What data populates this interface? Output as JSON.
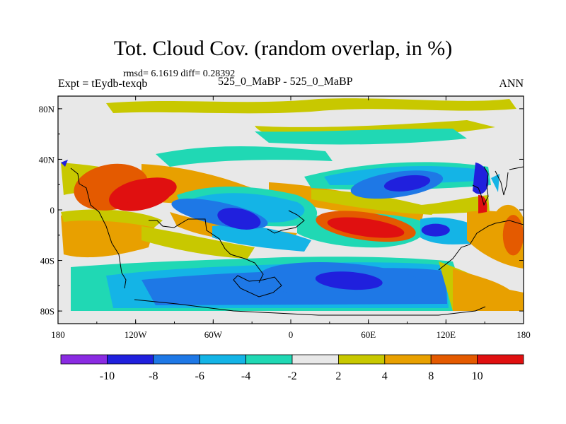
{
  "figure": {
    "title": "Tot. Cloud Cov. (random overlap, in %)",
    "stats": "rmsd= 6.1619  diff= 0.28392",
    "expt": "Expt = tEydb-texqb",
    "case": "525_0_MaBP - 525_0_MaBP",
    "season": "ANN"
  },
  "chart_data": {
    "type": "heatmap",
    "xlim": [
      -180,
      180
    ],
    "ylim": [
      -90,
      90
    ],
    "x_ticks": [
      {
        "value": -180,
        "label": "180"
      },
      {
        "value": -120,
        "label": "120W"
      },
      {
        "value": -60,
        "label": "60W"
      },
      {
        "value": 0,
        "label": "0"
      },
      {
        "value": 60,
        "label": "60E"
      },
      {
        "value": 120,
        "label": "120E"
      },
      {
        "value": 180,
        "label": "180"
      }
    ],
    "y_ticks": [
      {
        "value": 80,
        "label": "80N"
      },
      {
        "value": 40,
        "label": "40N"
      },
      {
        "value": 0,
        "label": "0"
      },
      {
        "value": -40,
        "label": "40S"
      },
      {
        "value": -80,
        "label": "80S"
      }
    ],
    "colorbar": {
      "levels": [
        -10,
        -8,
        -6,
        -4,
        -2,
        2,
        4,
        8,
        10
      ],
      "labels": [
        "-10",
        "-8",
        "-6",
        "-4",
        "-2",
        "2",
        "4",
        "8",
        "10"
      ],
      "colors": [
        "#8a2be2",
        "#2020dd",
        "#1e78e6",
        "#14b4e6",
        "#20d8b4",
        "#e8e8e8",
        "#c8c800",
        "#e8a000",
        "#e45a00",
        "#e01010"
      ]
    },
    "background_color": "#e8e8e8",
    "field_blobs": [
      {
        "lon": -139,
        "lat": 18,
        "rlon": 29,
        "rlat": 18,
        "rot": -10,
        "level": 8
      },
      {
        "lon": -116,
        "lat": 12,
        "rlon": 25,
        "rlat": 12,
        "rot": -12,
        "level": 10
      },
      {
        "lon": -110,
        "lat": 15,
        "rlon": 22,
        "rlat": 10,
        "rot": -10,
        "level": 10
      },
      {
        "lon": -55,
        "lat": -3,
        "rlon": 38,
        "rlat": 9,
        "rot": 12,
        "level": -8
      },
      {
        "lon": -40,
        "lat": -7,
        "rlon": 17,
        "rlat": 8,
        "rot": 12,
        "level": -10
      },
      {
        "lon": 58,
        "lat": -13,
        "rlon": 39,
        "rlat": 11,
        "rot": 8,
        "level": 8
      },
      {
        "lon": 58,
        "lat": -14,
        "rlon": 30,
        "rlat": 7,
        "rot": 8,
        "level": 10
      },
      {
        "lon": 82,
        "lat": 20,
        "rlon": 36,
        "rlat": 10,
        "rot": -8,
        "level": -8
      },
      {
        "lon": 90,
        "lat": 21,
        "rlon": 18,
        "rlat": 6,
        "rot": -8,
        "level": -10
      },
      {
        "lon": 112,
        "lat": -16,
        "rlon": 11,
        "rlat": 5,
        "rot": 0,
        "level": -10
      },
      {
        "lon": 40,
        "lat": -57,
        "rlon": 65,
        "rlat": 15,
        "rot": 4,
        "level": -8
      },
      {
        "lon": 45,
        "lat": -56,
        "rlon": 26,
        "rlat": 7,
        "rot": 4,
        "level": -10
      },
      {
        "lon": 168,
        "lat": -18,
        "rlon": 14,
        "rlat": 22,
        "rot": 0,
        "level": 4
      },
      {
        "lon": 172,
        "lat": -20,
        "rlon": 8,
        "rlat": 16,
        "rot": 0,
        "level": 8
      }
    ]
  }
}
